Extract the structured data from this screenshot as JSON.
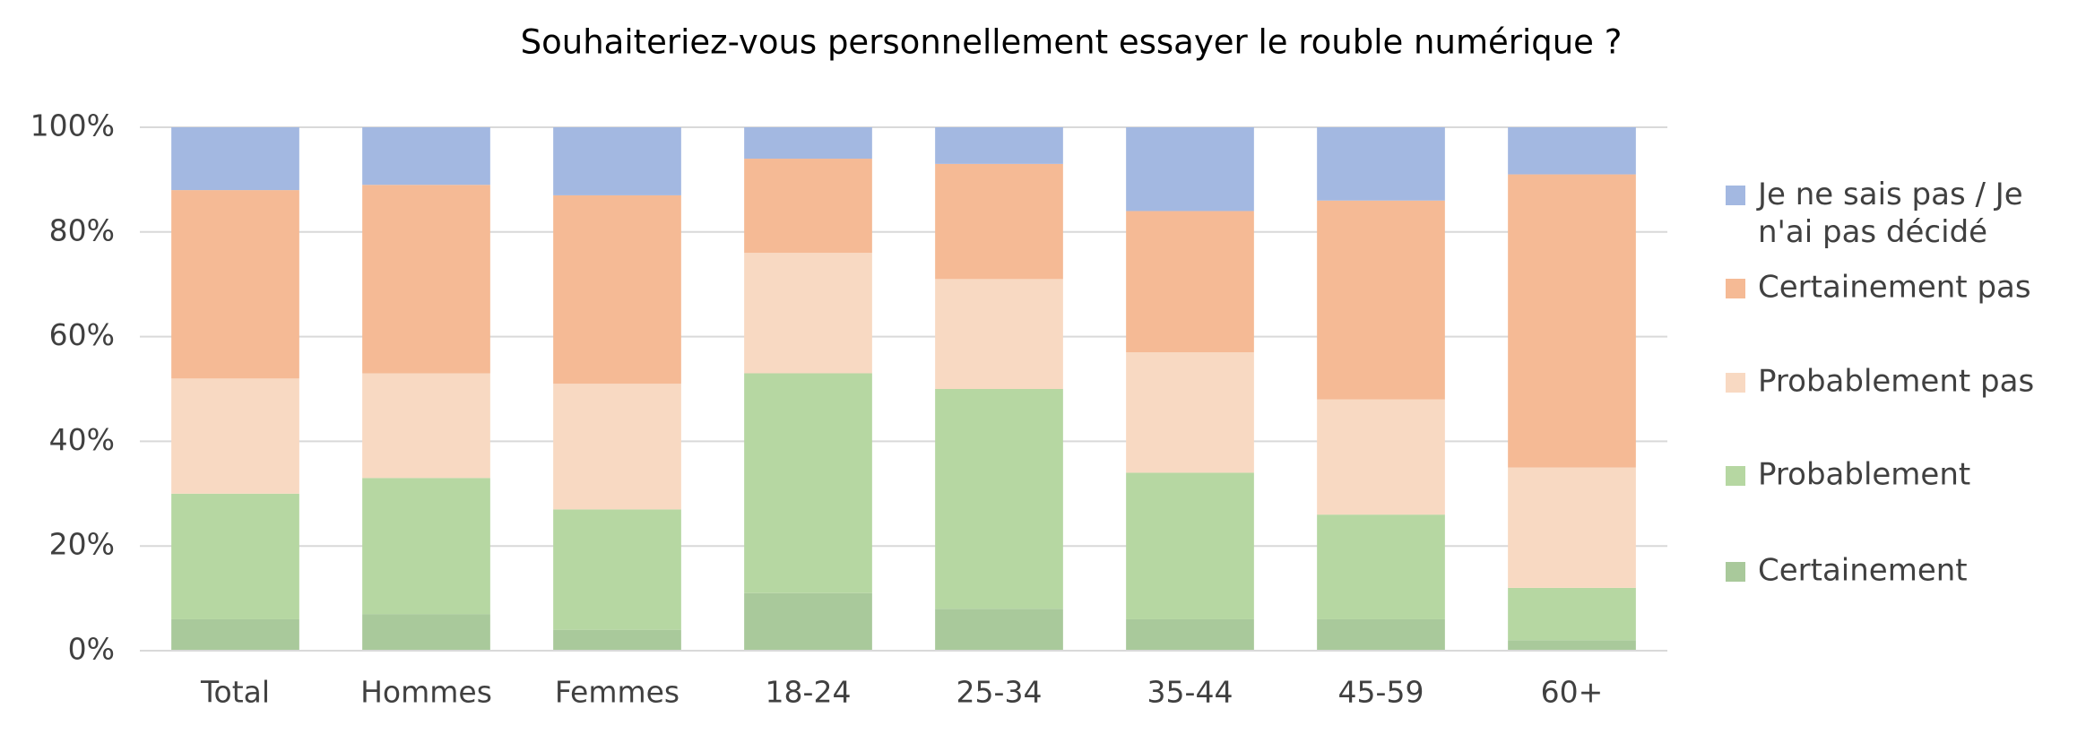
{
  "chart_data": {
    "type": "stacked_bar",
    "title": "Souhaiteriez-vous personnellement essayer le rouble numérique ?",
    "categories": [
      "Total",
      "Hommes",
      "Femmes",
      "18-24",
      "25-34",
      "35-44",
      "45-59",
      "60+"
    ],
    "series": [
      {
        "name": "Certainement",
        "color": "#a9c99b",
        "values": [
          6,
          7,
          4,
          11,
          8,
          6,
          6,
          2
        ]
      },
      {
        "name": "Probablement",
        "color": "#b6d7a2",
        "values": [
          24,
          26,
          23,
          42,
          42,
          28,
          20,
          10
        ]
      },
      {
        "name": "Probablement pas",
        "color": "#f8d9c2",
        "values": [
          22,
          20,
          24,
          23,
          21,
          23,
          22,
          23
        ]
      },
      {
        "name": "Certainement pas",
        "color": "#f5ba95",
        "values": [
          36,
          36,
          36,
          18,
          22,
          27,
          38,
          56
        ]
      },
      {
        "name": "Je ne sais pas / Je n'ai pas décidé",
        "color": "#a3b8e1",
        "values": [
          12,
          11,
          13,
          6,
          7,
          16,
          14,
          9
        ]
      }
    ],
    "ylim": [
      0,
      100
    ],
    "yticks": [
      {
        "value": 0,
        "label": "0%"
      },
      {
        "value": 20,
        "label": "20%"
      },
      {
        "value": 40,
        "label": "40%"
      },
      {
        "value": 60,
        "label": "60%"
      },
      {
        "value": 80,
        "label": "80%"
      },
      {
        "value": 100,
        "label": "100%"
      }
    ],
    "grid": true,
    "legend": "right"
  }
}
